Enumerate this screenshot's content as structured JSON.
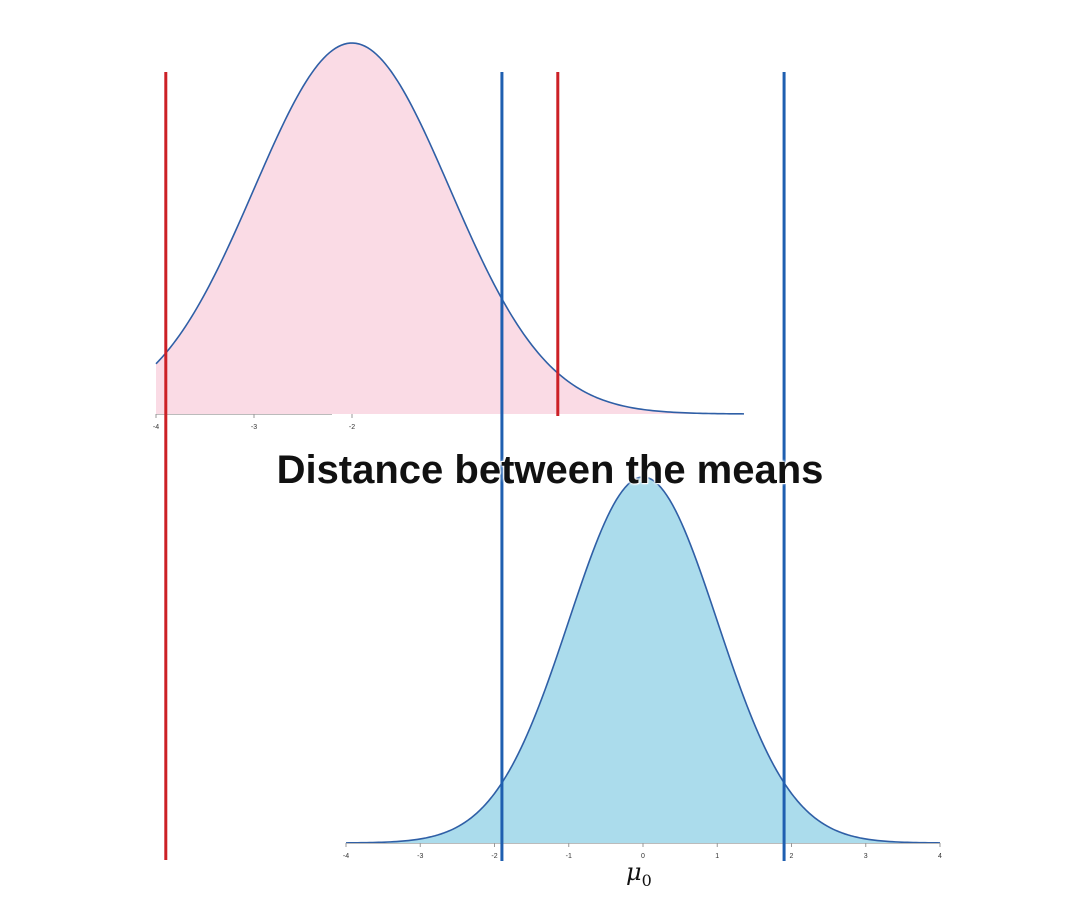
{
  "caption": "Distance between the means",
  "mu_label": {
    "symbol": "μ",
    "subscript": "0"
  },
  "colors": {
    "alt_fill": "#fadbe5",
    "null_fill": "#abdcec",
    "curve_stroke": "#2f5fa6",
    "red_line": "#cc2026",
    "blue_line": "#1f5fb0"
  },
  "chart_data": [
    {
      "type": "area",
      "name": "alternative-distribution",
      "distribution": "normal",
      "mean": -2,
      "sd": 1,
      "xlim": [
        -4,
        4
      ],
      "tick_labels": [
        "-4",
        "-3",
        "-2"
      ],
      "critical_lines": [
        -3.9,
        0.1
      ]
    },
    {
      "type": "area",
      "name": "null-distribution",
      "distribution": "normal",
      "mean": 0,
      "sd": 1,
      "xlim": [
        -4,
        4
      ],
      "tick_labels": [
        "-4",
        "-3",
        "-2",
        "-1",
        "0",
        "1",
        "2",
        "3",
        "4"
      ],
      "critical_lines": [
        -1.9,
        1.9
      ]
    }
  ]
}
